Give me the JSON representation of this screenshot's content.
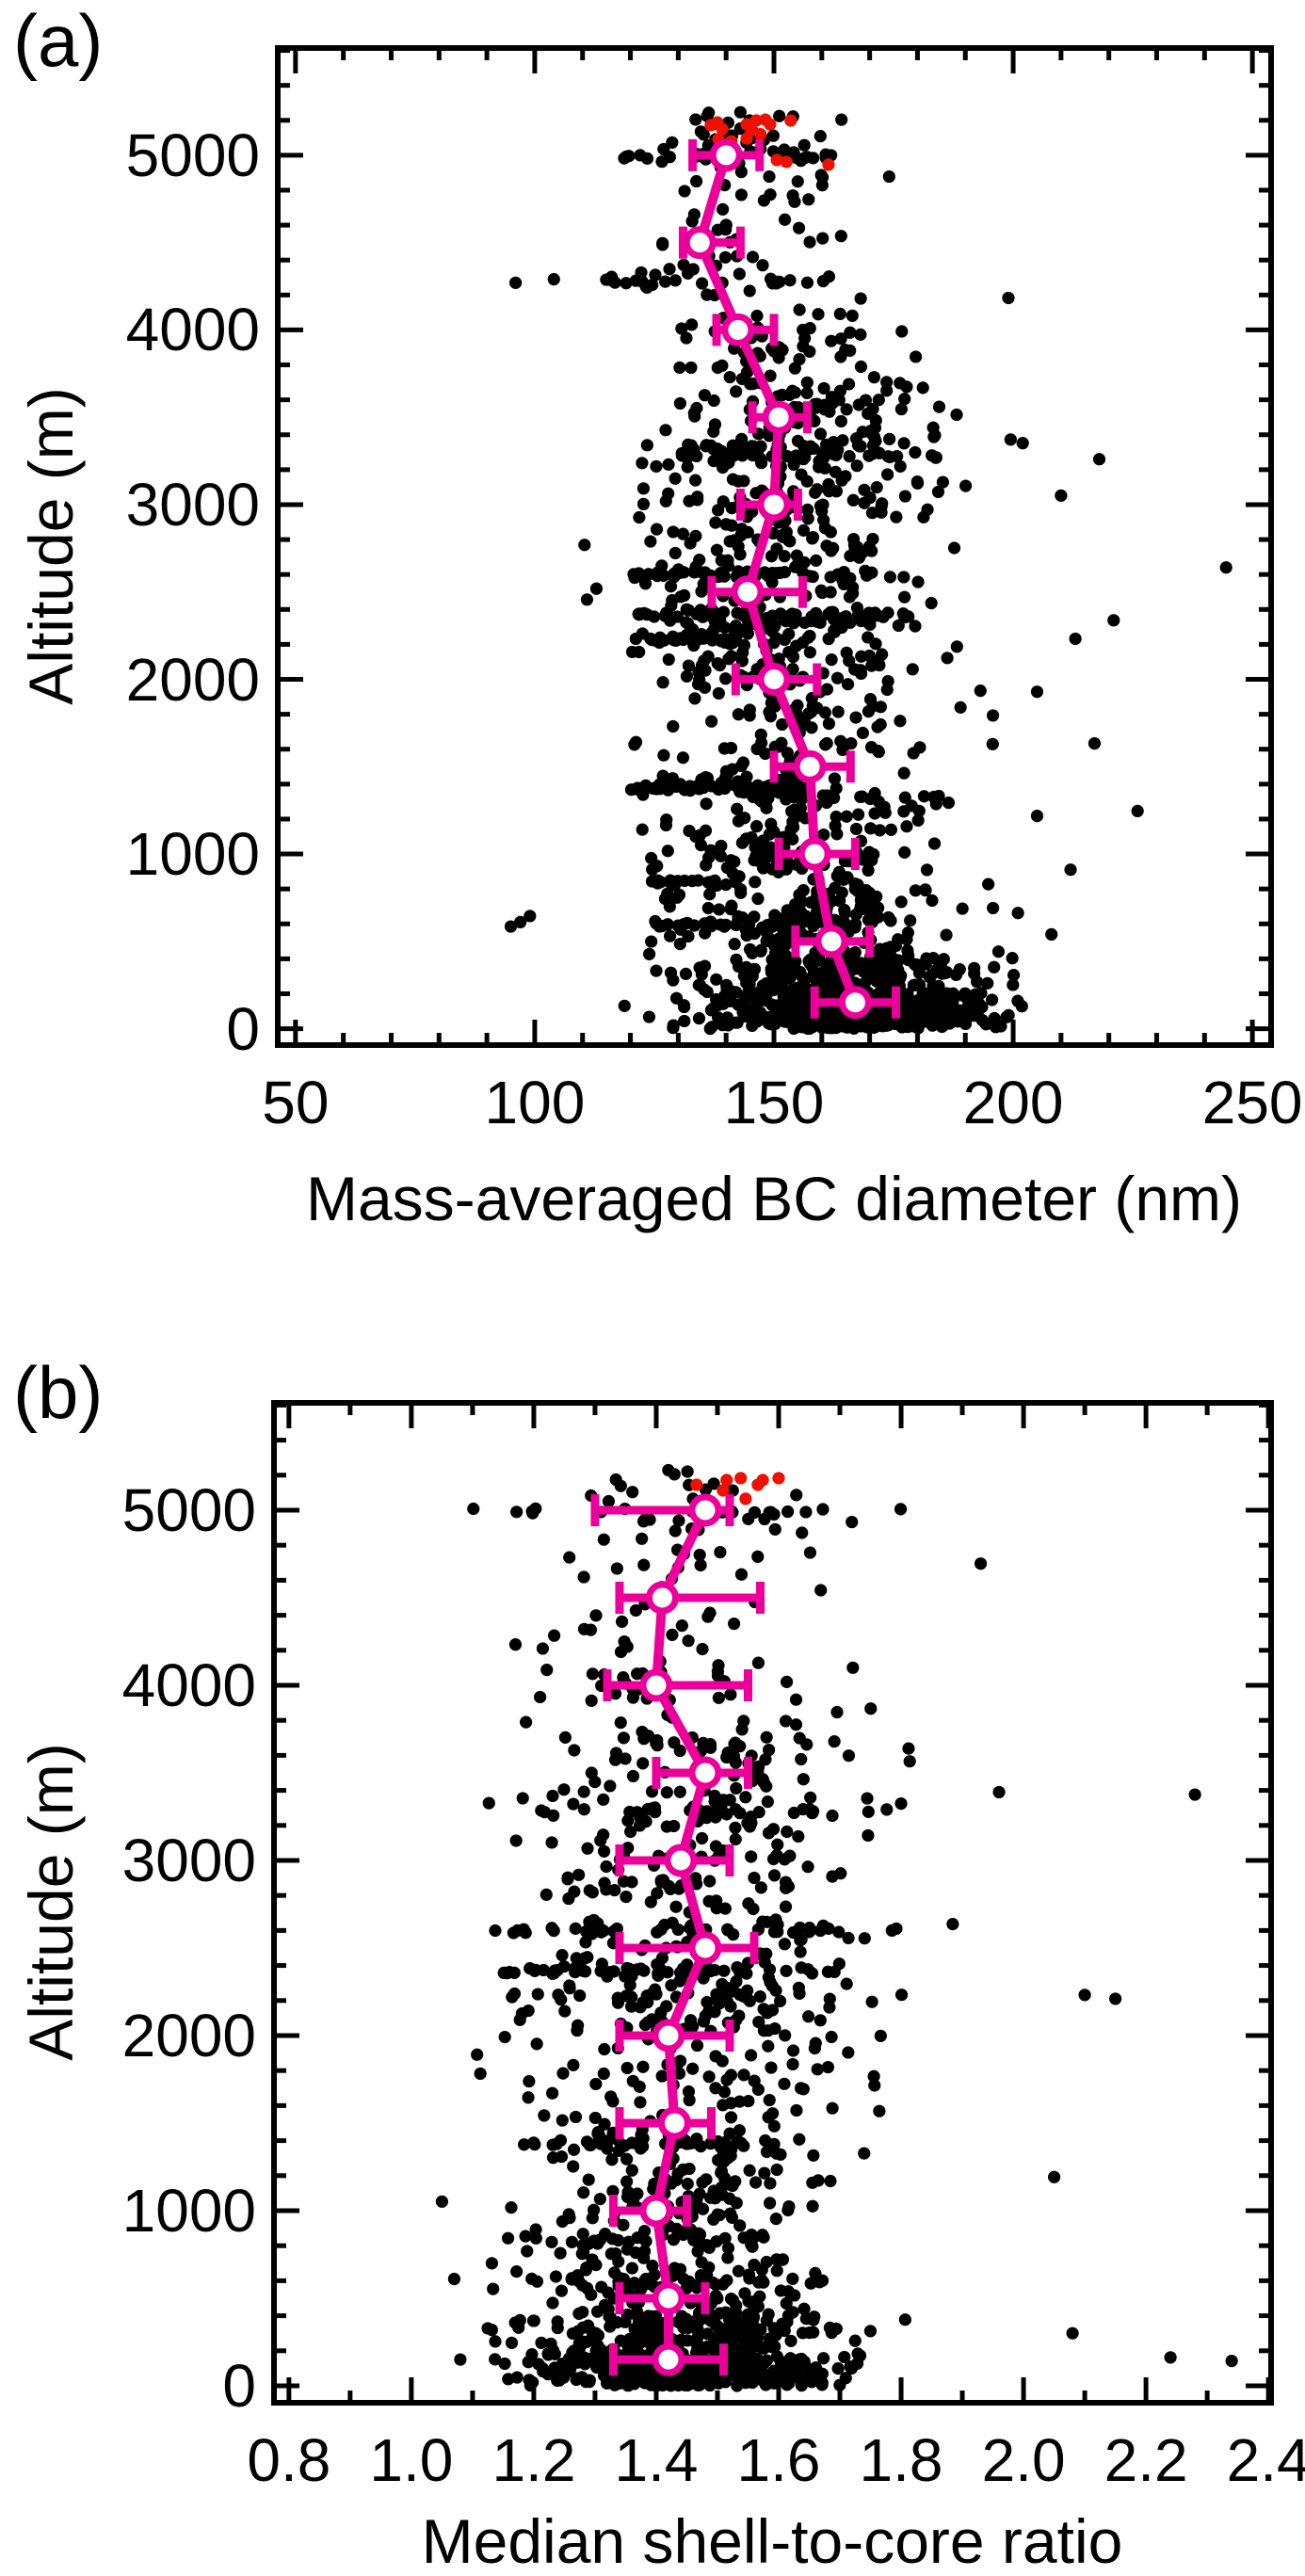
{
  "chart_data": [
    {
      "panel": "a",
      "panel_label": "(a)",
      "type": "scatter",
      "title": "",
      "xlabel": "Mass-averaged BC diameter (nm)",
      "ylabel": "Altitude (m)",
      "xlim": [
        45.7,
        254.5
      ],
      "ylim": [
        -110,
        5630
      ],
      "x_ticks": {
        "values": [
          50,
          100,
          150,
          200,
          250
        ],
        "labels": [
          "50",
          "100",
          "150",
          "200",
          "250"
        ]
      },
      "x_minor_step": 10,
      "y_ticks": {
        "values": [
          0,
          1000,
          2000,
          3000,
          4000,
          5000
        ],
        "labels": [
          "0",
          "1000",
          "2000",
          "3000",
          "4000",
          "5000"
        ]
      },
      "y_minor_step": 200,
      "grid": false,
      "legend": "none",
      "colors": {
        "points": "#000000",
        "flagged": "#ee1100",
        "profile": "#ec009c"
      },
      "scatter": {
        "seed": 20240501,
        "bands": [
          {
            "alt": [
              0,
              160
            ],
            "n": 400,
            "mean": 166,
            "sd": 16,
            "x_clamp": [
              118,
              202
            ]
          },
          {
            "alt": [
              160,
              420
            ],
            "n": 300,
            "mean": 163,
            "sd": 15,
            "x_clamp": [
              117,
              202
            ]
          },
          {
            "alt": [
              420,
              700
            ],
            "n": 120,
            "mean": 156,
            "sd": 16,
            "x_clamp": [
              112,
              200
            ]
          },
          {
            "alt": [
              700,
              1000
            ],
            "n": 90,
            "mean": 156,
            "sd": 15,
            "x_clamp": [
              115,
              200
            ]
          },
          {
            "alt": [
              1000,
              1350
            ],
            "n": 95,
            "mean": 157,
            "sd": 15,
            "x_clamp": [
              118,
              205
            ]
          },
          {
            "alt": [
              1350,
              1450
            ],
            "n": 40,
            "mean": 143,
            "sd": 12,
            "x_clamp": [
              118,
              170
            ]
          },
          {
            "alt": [
              1450,
              1950
            ],
            "n": 85,
            "mean": 154,
            "sd": 16,
            "x_clamp": [
              115,
              205
            ]
          },
          {
            "alt": [
              1950,
              2320
            ],
            "n": 110,
            "mean": 149,
            "sd": 17,
            "x_clamp": [
              113,
              205
            ]
          },
          {
            "alt": [
              2320,
              2420
            ],
            "n": 40,
            "mean": 149,
            "sd": 15,
            "x_clamp": [
              118,
              185
            ]
          },
          {
            "alt": [
              2420,
              2900
            ],
            "n": 110,
            "mean": 147,
            "sd": 16,
            "x_clamp": [
              110,
              200
            ]
          },
          {
            "alt": [
              2900,
              3400
            ],
            "n": 130,
            "mean": 152,
            "sd": 17,
            "x_clamp": [
              120,
              210
            ]
          },
          {
            "alt": [
              3400,
              3700
            ],
            "n": 75,
            "mean": 156,
            "sd": 14,
            "x_clamp": [
              125,
              195
            ]
          },
          {
            "alt": [
              3700,
              4200
            ],
            "n": 55,
            "mean": 150,
            "sd": 14,
            "x_clamp": [
              120,
              188
            ]
          },
          {
            "alt": [
              4200,
              4400
            ],
            "n": 20,
            "mean": 136,
            "sd": 13,
            "x_clamp": [
              108,
              165
            ]
          },
          {
            "alt": [
              4400,
              4900
            ],
            "n": 35,
            "mean": 146,
            "sd": 12,
            "x_clamp": [
              122,
              175
            ]
          },
          {
            "alt": [
              4900,
              5250
            ],
            "n": 45,
            "mean": 142,
            "sd": 11,
            "x_clamp": [
              116,
              168
            ]
          }
        ],
        "level_legs": [
          {
            "alt": 600,
            "n": 24,
            "x_range": [
              124,
              168
            ]
          },
          {
            "alt": 835,
            "n": 16,
            "x_range": [
              124,
              140
            ]
          },
          {
            "alt": 1380,
            "n": 34,
            "x_range": [
              120,
              158
            ]
          },
          {
            "alt": 2225,
            "n": 20,
            "x_range": [
              120,
              142
            ]
          },
          {
            "alt": 2370,
            "n": 40,
            "x_range": [
              121,
              179
            ]
          },
          {
            "alt": 2600,
            "n": 44,
            "x_range": [
              117,
              177
            ]
          },
          {
            "alt": 3280,
            "n": 28,
            "x_range": [
              128,
              188
            ]
          },
          {
            "alt": 3330,
            "n": 22,
            "x_range": [
              131,
              175
            ]
          },
          {
            "alt": 4280,
            "n": 15,
            "x_range": [
              110,
              162
            ]
          },
          {
            "alt": 4990,
            "n": 20,
            "x_range": [
              118,
              166
            ]
          }
        ],
        "extra_points": [
          [
            96,
            4270
          ],
          [
            104,
            4290
          ],
          [
            97,
            610
          ],
          [
            99,
            645
          ],
          [
            95,
            585
          ],
          [
            244.5,
            2640
          ],
          [
            221,
            2338
          ],
          [
            218,
            3260
          ],
          [
            205,
            1929
          ],
          [
            217,
            1633
          ],
          [
            205,
            1218
          ],
          [
            226,
            1246
          ],
          [
            210,
            3052
          ],
          [
            213,
            2232
          ],
          [
            202,
            3352
          ],
          [
            199,
            4183
          ],
          [
            201,
            662
          ],
          [
            196,
            352
          ],
          [
            208,
            540
          ],
          [
            212,
            910
          ]
        ]
      },
      "flagged_points": [
        [
          136.8,
          5172
        ],
        [
          138.2,
          5188
        ],
        [
          139.2,
          5150
        ],
        [
          141.1,
          5080
        ],
        [
          144.3,
          5177
        ],
        [
          145.3,
          5145
        ],
        [
          146.3,
          5199
        ],
        [
          147.2,
          5120
        ],
        [
          148.2,
          5204
        ],
        [
          149.2,
          5177
        ],
        [
          150.6,
          4973
        ],
        [
          152.6,
          4962
        ],
        [
          153.5,
          5199
        ],
        [
          138.4,
          5091
        ],
        [
          144.3,
          5096
        ],
        [
          161.4,
          4946
        ]
      ],
      "profile": [
        {
          "alt": 150,
          "x": 167.0,
          "lo": 158.5,
          "hi": 175.5
        },
        {
          "alt": 500,
          "x": 162.0,
          "lo": 154.5,
          "hi": 170.0
        },
        {
          "alt": 1000,
          "x": 158.5,
          "lo": 151.0,
          "hi": 167.0
        },
        {
          "alt": 1500,
          "x": 157.5,
          "lo": 150.0,
          "hi": 166.0
        },
        {
          "alt": 2000,
          "x": 150.0,
          "lo": 142.0,
          "hi": 159.0
        },
        {
          "alt": 2500,
          "x": 144.5,
          "lo": 137.0,
          "hi": 156.0
        },
        {
          "alt": 3000,
          "x": 150.0,
          "lo": 143.0,
          "hi": 155.0
        },
        {
          "alt": 3500,
          "x": 151.0,
          "lo": 145.5,
          "hi": 157.0
        },
        {
          "alt": 4000,
          "x": 142.5,
          "lo": 138.0,
          "hi": 150.0
        },
        {
          "alt": 4500,
          "x": 134.5,
          "lo": 131.0,
          "hi": 143.0
        },
        {
          "alt": 5000,
          "x": 140.0,
          "lo": 133.0,
          "hi": 147.0
        }
      ]
    },
    {
      "panel": "b",
      "panel_label": "(b)",
      "type": "scatter",
      "title": "",
      "xlabel": "Median shell-to-core ratio",
      "ylabel": "Altitude (m)",
      "xlim": [
        0.771,
        2.409
      ],
      "ylim": [
        -113,
        5629
      ],
      "x_ticks": {
        "values": [
          0.8,
          1.0,
          1.2,
          1.4,
          1.6,
          1.8,
          2.0,
          2.2,
          2.4
        ],
        "labels": [
          "0.8",
          "1.0",
          "1.2",
          "1.4",
          "1.6",
          "1.8",
          "2.0",
          "2.2",
          "2.4"
        ]
      },
      "x_minor_step": 0.1,
      "y_ticks": {
        "values": [
          0,
          1000,
          2000,
          3000,
          4000,
          5000
        ],
        "labels": [
          "0",
          "1000",
          "2000",
          "3000",
          "4000",
          "5000"
        ]
      },
      "y_minor_step": 200,
      "grid": false,
      "legend": "none",
      "colors": {
        "points": "#000000",
        "flagged": "#ee1100",
        "profile": "#ec009c"
      },
      "scatter": {
        "seed": 777001,
        "bands": [
          {
            "alt": [
              0,
              160
            ],
            "n": 350,
            "mean": 1.44,
            "sd": 0.13,
            "x_clamp": [
              1.08,
              1.88
            ]
          },
          {
            "alt": [
              160,
              420
            ],
            "n": 240,
            "mean": 1.45,
            "sd": 0.13,
            "x_clamp": [
              1.1,
              1.92
            ]
          },
          {
            "alt": [
              420,
              700
            ],
            "n": 95,
            "mean": 1.43,
            "sd": 0.12,
            "x_clamp": [
              1.1,
              1.85
            ]
          },
          {
            "alt": [
              700,
              1000
            ],
            "n": 70,
            "mean": 1.42,
            "sd": 0.12,
            "x_clamp": [
              1.1,
              1.85
            ]
          },
          {
            "alt": [
              1000,
              1350
            ],
            "n": 80,
            "mean": 1.45,
            "sd": 0.13,
            "x_clamp": [
              1.08,
              1.95
            ]
          },
          {
            "alt": [
              1350,
              1450
            ],
            "n": 30,
            "mean": 1.42,
            "sd": 0.1,
            "x_clamp": [
              1.15,
              1.7
            ]
          },
          {
            "alt": [
              1450,
              1950
            ],
            "n": 75,
            "mean": 1.45,
            "sd": 0.13,
            "x_clamp": [
              1.1,
              1.95
            ]
          },
          {
            "alt": [
              1950,
              2320
            ],
            "n": 90,
            "mean": 1.46,
            "sd": 0.14,
            "x_clamp": [
              1.1,
              1.95
            ]
          },
          {
            "alt": [
              2320,
              2420
            ],
            "n": 35,
            "mean": 1.45,
            "sd": 0.13,
            "x_clamp": [
              1.12,
              1.85
            ]
          },
          {
            "alt": [
              2420,
              2900
            ],
            "n": 85,
            "mean": 1.46,
            "sd": 0.14,
            "x_clamp": [
              1.08,
              1.95
            ]
          },
          {
            "alt": [
              2900,
              3400
            ],
            "n": 90,
            "mean": 1.47,
            "sd": 0.14,
            "x_clamp": [
              1.12,
              1.98
            ]
          },
          {
            "alt": [
              3400,
              3700
            ],
            "n": 55,
            "mean": 1.48,
            "sd": 0.12,
            "x_clamp": [
              1.2,
              1.9
            ]
          },
          {
            "alt": [
              3700,
              4200
            ],
            "n": 45,
            "mean": 1.44,
            "sd": 0.13,
            "x_clamp": [
              1.15,
              1.9
            ]
          },
          {
            "alt": [
              4200,
              4400
            ],
            "n": 15,
            "mean": 1.38,
            "sd": 0.1,
            "x_clamp": [
              1.15,
              1.65
            ]
          },
          {
            "alt": [
              4400,
              4900
            ],
            "n": 28,
            "mean": 1.42,
            "sd": 0.11,
            "x_clamp": [
              1.18,
              1.75
            ]
          },
          {
            "alt": [
              4900,
              5250
            ],
            "n": 28,
            "mean": 1.46,
            "sd": 0.12,
            "x_clamp": [
              1.1,
              1.9
            ]
          }
        ],
        "level_legs": [
          {
            "alt": 4995,
            "n": 12,
            "x_range": [
              1.1,
              1.9
            ]
          },
          {
            "alt": 2370,
            "n": 28,
            "x_range": [
              1.15,
              1.76
            ]
          },
          {
            "alt": 2600,
            "n": 30,
            "x_range": [
              1.12,
              1.8
            ]
          },
          {
            "alt": 1380,
            "n": 24,
            "x_range": [
              1.18,
              1.66
            ]
          },
          {
            "alt": 3280,
            "n": 20,
            "x_range": [
              1.2,
              1.8
            ]
          },
          {
            "alt": 600,
            "n": 18,
            "x_range": [
              1.18,
              1.7
            ]
          },
          {
            "alt": 835,
            "n": 12,
            "x_range": [
              1.2,
              1.56
            ]
          },
          {
            "alt": 2225,
            "n": 14,
            "x_range": [
              1.15,
              1.6
            ]
          }
        ],
        "extra_points": [
          [
            2.28,
            3376
          ],
          [
            2.1,
            2232
          ],
          [
            2.34,
            142
          ],
          [
            2.24,
            162
          ],
          [
            2.08,
            300
          ],
          [
            2.05,
            1192
          ],
          [
            1.05,
            1052
          ],
          [
            2.15,
            2210
          ],
          [
            1.96,
            3390
          ],
          [
            1.93,
            4695
          ],
          [
            1.07,
            610
          ],
          [
            1.08,
            150
          ]
        ]
      },
      "flagged_points": [
        [
          1.466,
          5145
        ],
        [
          1.515,
          5172
        ],
        [
          1.509,
          5113
        ],
        [
          1.538,
          5183
        ],
        [
          1.546,
          5065
        ],
        [
          1.566,
          5145
        ],
        [
          1.574,
          5172
        ],
        [
          1.6,
          5183
        ]
      ],
      "profile": [
        {
          "alt": 150,
          "x": 1.42,
          "lo": 1.33,
          "hi": 1.51
        },
        {
          "alt": 500,
          "x": 1.42,
          "lo": 1.34,
          "hi": 1.48
        },
        {
          "alt": 1000,
          "x": 1.4,
          "lo": 1.33,
          "hi": 1.45
        },
        {
          "alt": 1500,
          "x": 1.43,
          "lo": 1.34,
          "hi": 1.49
        },
        {
          "alt": 2000,
          "x": 1.42,
          "lo": 1.34,
          "hi": 1.52
        },
        {
          "alt": 2500,
          "x": 1.48,
          "lo": 1.34,
          "hi": 1.56
        },
        {
          "alt": 3000,
          "x": 1.44,
          "lo": 1.34,
          "hi": 1.52
        },
        {
          "alt": 3500,
          "x": 1.48,
          "lo": 1.4,
          "hi": 1.55
        },
        {
          "alt": 4000,
          "x": 1.4,
          "lo": 1.32,
          "hi": 1.55
        },
        {
          "alt": 4500,
          "x": 1.41,
          "lo": 1.34,
          "hi": 1.57
        },
        {
          "alt": 5000,
          "x": 1.48,
          "lo": 1.3,
          "hi": 1.52
        }
      ]
    }
  ]
}
